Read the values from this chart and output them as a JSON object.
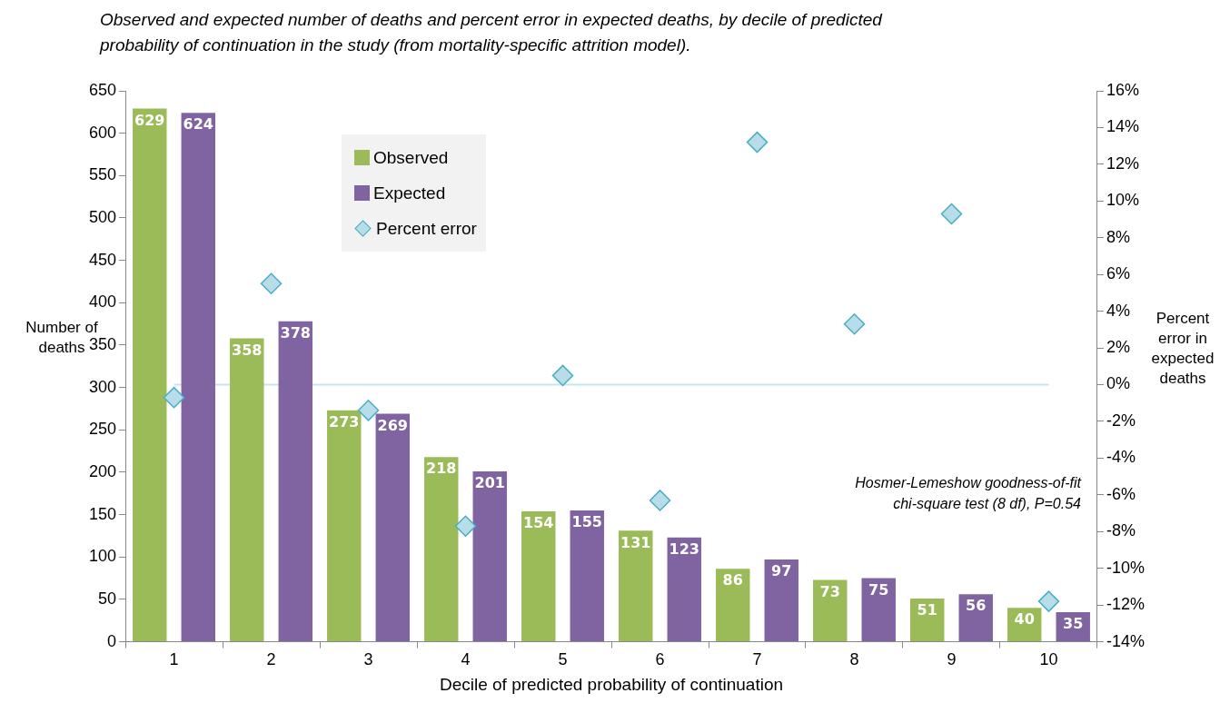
{
  "chart_data": {
    "type": "bar",
    "title": "Observed and expected number of deaths and percent error in expected deaths, by decile of predicted probability of continuation in the study (from mortality-specific attrition model).",
    "xlabel": "Decile of predicted probability of continuation",
    "ylabel": "Number of deaths",
    "y2label": "Percent error in expected deaths",
    "categories": [
      "1",
      "2",
      "3",
      "4",
      "5",
      "6",
      "7",
      "8",
      "9",
      "10"
    ],
    "series": [
      {
        "name": "Observed",
        "color": "#9bbb59",
        "values": [
          629,
          358,
          273,
          218,
          154,
          131,
          86,
          73,
          51,
          40
        ],
        "value_labels": [
          "629",
          "358",
          "273",
          "218",
          "154",
          "131",
          "86",
          "73",
          "51",
          "40"
        ]
      },
      {
        "name": "Expected",
        "color": "#8064a2",
        "values": [
          624,
          378,
          269,
          201,
          155,
          123,
          97,
          75,
          56,
          35
        ],
        "value_labels": [
          "624",
          "378",
          "269",
          "201",
          "155",
          "123",
          "97",
          "75",
          "56",
          "35"
        ]
      },
      {
        "name": "Percent error",
        "type": "scatter",
        "axis": "y2",
        "color": "#b7dee8",
        "values": [
          -0.7,
          5.5,
          -1.4,
          -7.7,
          0.5,
          -6.3,
          13.2,
          3.3,
          9.3,
          -11.8
        ]
      }
    ],
    "marker": "diamond",
    "ylim": [
      0,
      650
    ],
    "yticks": [
      0,
      50,
      100,
      150,
      200,
      250,
      300,
      350,
      400,
      450,
      500,
      550,
      600,
      650
    ],
    "y2lim": [
      -14,
      16
    ],
    "y2ticks": [
      {
        "value": -14,
        "label": "-14%"
      },
      {
        "value": -12,
        "label": "-12%"
      },
      {
        "value": -10,
        "label": "-10%"
      },
      {
        "value": -8,
        "label": "-8%"
      },
      {
        "value": -6,
        "label": "-6%"
      },
      {
        "value": -4,
        "label": "-4%"
      },
      {
        "value": -2,
        "label": "-2%"
      },
      {
        "value": 0,
        "label": "0%"
      },
      {
        "value": 2,
        "label": "2%"
      },
      {
        "value": 4,
        "label": "4%"
      },
      {
        "value": 6,
        "label": "6%"
      },
      {
        "value": 8,
        "label": "8%"
      },
      {
        "value": 10,
        "label": "10%"
      },
      {
        "value": 12,
        "label": "12%"
      },
      {
        "value": 14,
        "label": "14%"
      },
      {
        "value": 16,
        "label": "16%"
      }
    ],
    "ref_lines": [
      {
        "axis": "y2",
        "value": 0,
        "color": "#c6e5ee"
      }
    ],
    "annotations": [
      "Hosmer-Lemeshow goodness-of-fit chi-square test (8 df), P=0.54"
    ],
    "grid": false,
    "legend": "top left"
  }
}
